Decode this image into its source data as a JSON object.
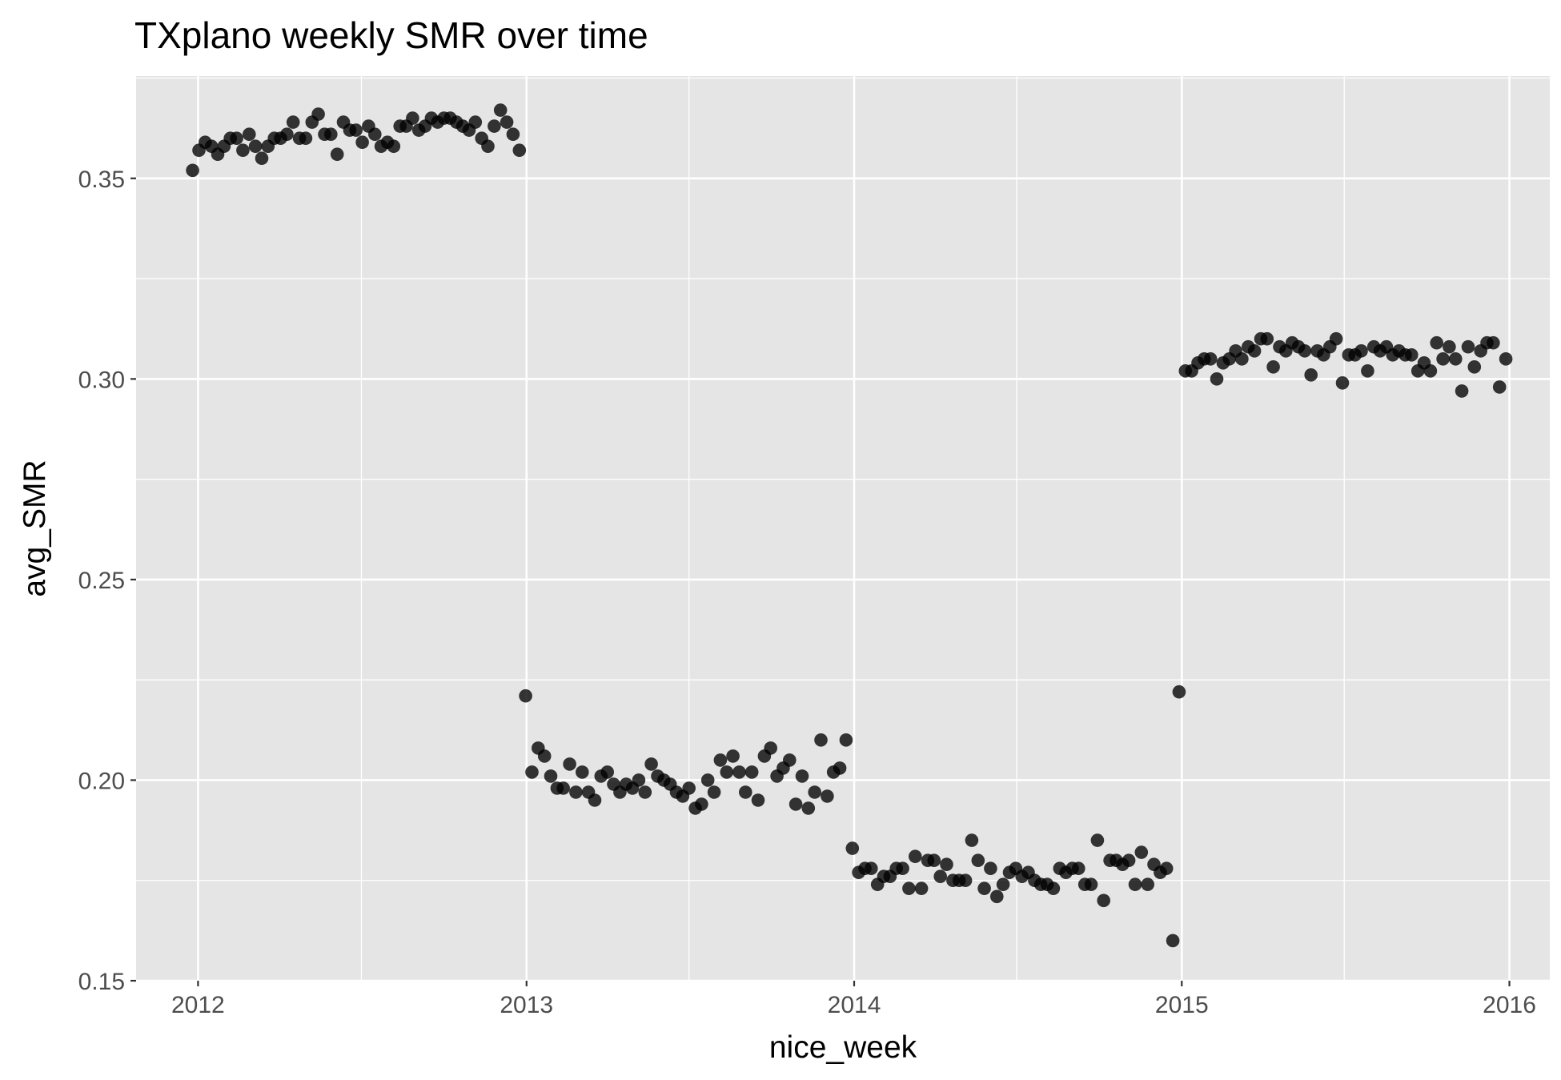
{
  "chart_data": {
    "type": "scatter",
    "title": "TXplano weekly SMR over time",
    "xlabel": "nice_week",
    "ylabel": "avg_SMR",
    "x_scale": "date",
    "xlim": [
      "2011-10-24",
      "2016-02-15"
    ],
    "ylim": [
      0.15,
      0.3755
    ],
    "x_ticks": [
      {
        "date": "2012-01-01",
        "label": "2012"
      },
      {
        "date": "2013-01-01",
        "label": "2013"
      },
      {
        "date": "2014-01-01",
        "label": "2014"
      },
      {
        "date": "2015-01-01",
        "label": "2015"
      },
      {
        "date": "2016-01-01",
        "label": "2016"
      }
    ],
    "x_minor_ticks": [
      "2012-07-01",
      "2013-07-01",
      "2014-07-01",
      "2015-07-01"
    ],
    "y_ticks": [
      {
        "value": 0.15,
        "label": "0.15"
      },
      {
        "value": 0.2,
        "label": "0.20"
      },
      {
        "value": 0.25,
        "label": "0.25"
      },
      {
        "value": 0.3,
        "label": "0.30"
      },
      {
        "value": 0.35,
        "label": "0.35"
      }
    ],
    "y_minor_ticks": [
      0.175,
      0.225,
      0.275,
      0.325,
      0.375
    ],
    "grid": true,
    "colors": {
      "panel_background": "#e5e5e5",
      "grid": "#ffffff",
      "point": "#000000",
      "tick_label": "#4d4d4d"
    },
    "series": [
      {
        "start_date": "2011-12-26",
        "values": [
          0.352,
          0.357,
          0.359,
          0.358,
          0.356,
          0.358,
          0.36,
          0.36,
          0.357,
          0.361,
          0.358,
          0.355,
          0.358,
          0.36,
          0.36,
          0.361,
          0.364,
          0.36,
          0.36,
          0.364,
          0.366,
          0.361,
          0.361,
          0.356,
          0.364,
          0.362,
          0.362,
          0.359,
          0.363,
          0.361,
          0.358,
          0.359,
          0.358,
          0.363,
          0.363,
          0.365,
          0.362,
          0.363,
          0.365,
          0.364,
          0.365,
          0.365,
          0.364,
          0.363,
          0.362,
          0.364,
          0.36,
          0.358,
          0.363,
          0.367,
          0.364,
          0.361,
          0.357
        ]
      },
      {
        "start_date": "2012-12-31",
        "values": [
          0.221,
          0.202,
          0.208,
          0.206,
          0.201,
          0.198,
          0.198,
          0.204,
          0.197,
          0.202,
          0.197,
          0.195,
          0.201,
          0.202,
          0.199,
          0.197,
          0.199,
          0.198,
          0.2,
          0.197,
          0.204,
          0.201,
          0.2,
          0.199,
          0.197,
          0.196,
          0.198,
          0.193,
          0.194,
          0.2,
          0.197,
          0.205,
          0.202,
          0.206,
          0.202,
          0.197,
          0.202,
          0.195,
          0.206,
          0.208,
          0.201,
          0.203,
          0.205,
          0.194,
          0.201,
          0.193,
          0.197,
          0.21,
          0.196,
          0.202,
          0.203,
          0.21
        ]
      },
      {
        "start_date": "2013-12-30",
        "values": [
          0.183,
          0.177,
          0.178,
          0.178,
          0.174,
          0.176,
          0.176,
          0.178,
          0.178,
          0.173,
          0.181,
          0.173,
          0.18,
          0.18,
          0.176,
          0.179,
          0.175,
          0.175,
          0.175,
          0.185,
          0.18,
          0.173,
          0.178,
          0.171,
          0.174,
          0.177,
          0.178,
          0.176,
          0.177,
          0.175,
          0.174,
          0.174,
          0.173,
          0.178,
          0.177,
          0.178,
          0.178,
          0.174,
          0.174,
          0.185,
          0.17,
          0.18,
          0.18,
          0.179,
          0.18,
          0.174,
          0.182,
          0.174,
          0.179,
          0.177,
          0.178,
          0.16
        ]
      },
      {
        "start_date": "2014-12-29",
        "values": [
          0.222,
          0.302,
          0.302,
          0.304,
          0.305,
          0.305,
          0.3,
          0.304,
          0.305,
          0.307,
          0.305,
          0.308,
          0.307,
          0.31,
          0.31,
          0.303,
          0.308,
          0.307,
          0.309,
          0.308,
          0.307,
          0.301,
          0.307,
          0.306,
          0.308,
          0.31,
          0.299,
          0.306,
          0.306,
          0.307,
          0.302,
          0.308,
          0.307,
          0.308,
          0.306,
          0.307,
          0.306,
          0.306,
          0.302,
          0.304,
          0.302,
          0.309,
          0.305,
          0.308,
          0.305,
          0.297,
          0.308,
          0.303,
          0.307,
          0.309,
          0.309,
          0.298,
          0.305
        ]
      }
    ]
  }
}
